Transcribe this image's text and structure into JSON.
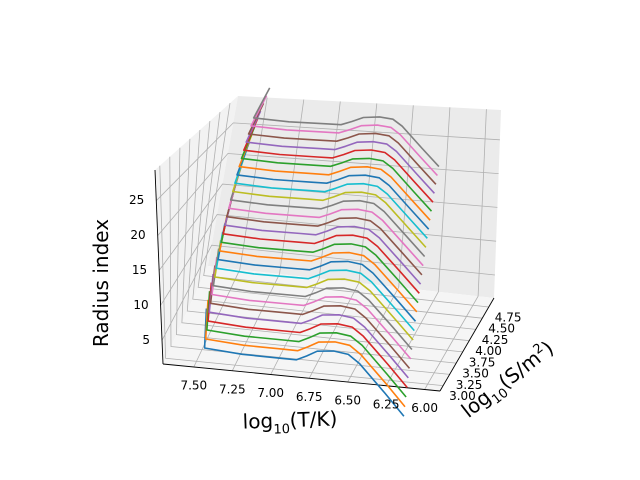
{
  "chart_data": {
    "type": "line",
    "projection": "3d",
    "title": "",
    "axes": {
      "x": {
        "label_base": "log",
        "label_sub": "10",
        "label_rest": "(T/K)",
        "ticks": [
          7.5,
          7.25,
          7.0,
          6.75,
          6.5,
          6.25,
          6.0
        ],
        "tick_labels": [
          "7.50",
          "7.25",
          "7.00",
          "6.75",
          "6.50",
          "6.25",
          "6.00"
        ],
        "range": [
          7.7,
          5.9
        ],
        "inverted": true
      },
      "y": {
        "label_base": "log",
        "label_sub": "10",
        "label_rest": "(S/m",
        "label_sup": "2",
        "label_end": ")",
        "ticks": [
          3.0,
          3.25,
          3.5,
          3.75,
          4.0,
          4.25,
          4.5,
          4.75
        ],
        "tick_labels": [
          "3.00",
          "3.25",
          "3.50",
          "3.75",
          "4.00",
          "4.25",
          "4.50",
          "4.75"
        ],
        "range": [
          2.88,
          4.95
        ]
      },
      "z": {
        "label": "Radius index",
        "ticks": [
          5,
          10,
          15,
          20,
          25
        ],
        "tick_labels": [
          "5",
          "10",
          "15",
          "20",
          "25"
        ],
        "range": [
          1.6,
          29.4
        ]
      }
    },
    "grid": true,
    "legend": "none",
    "series_count": 28,
    "colors": [
      "#1f77b4",
      "#ff7f0e",
      "#2ca02c",
      "#d62728",
      "#9467bd",
      "#8c564b",
      "#e377c2",
      "#7f7f7f",
      "#bcbd22",
      "#17becf"
    ],
    "curve_profile": {
      "description_x": [
        7.6,
        7.5,
        7.25,
        7.0,
        6.9,
        6.85,
        6.8,
        6.7,
        6.6,
        6.5,
        6.25,
        6.05
      ],
      "log_S_rel": [
        0.85,
        0.05,
        0.0,
        0.0,
        0.0,
        0.1,
        0.22,
        0.26,
        0.22,
        0.05,
        -0.5,
        -0.95
      ]
    },
    "log_S_start": 3.32,
    "log_S_end": 4.58,
    "radius_index_start": 1,
    "radius_index_end": 28
  }
}
